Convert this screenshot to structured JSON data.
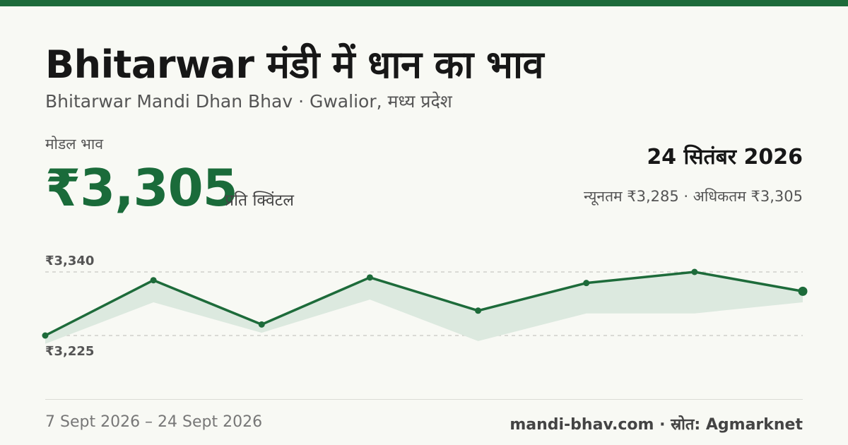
{
  "title": "Bhitarwar मंडी में धान का भाव",
  "subtitle": "Bhitarwar Mandi Dhan Bhav · Gwalior, मध्य प्रदेश",
  "price_label": "मोडल भाव",
  "price_value": "₹3,305",
  "price_unit": "प्रति क्विंटल",
  "date": "24 सितंबर 2026",
  "range_text": "न्यूनतम ₹3,285 · अधिकतम ₹3,305",
  "footer": {
    "date_range": "7 Sept 2026 – 24 Sept 2026",
    "source": "mandi-bhav.com · स्रोत: Agmarknet"
  },
  "colors": {
    "accent": "#1d6b3a",
    "band": "#dce9df"
  },
  "chart_data": {
    "type": "line",
    "series": [
      {
        "name": "मोडल भाव",
        "values": [
          3225,
          3325,
          3245,
          3330,
          3270,
          3320,
          3340,
          3305
        ]
      },
      {
        "name": "न्यूनतम",
        "values": [
          3210,
          3285,
          3230,
          3290,
          3215,
          3265,
          3265,
          3285
        ]
      }
    ],
    "ylim": [
      3225,
      3340
    ],
    "y_tick_labels": [
      "₹3,340",
      "₹3,225"
    ],
    "grid": true
  }
}
